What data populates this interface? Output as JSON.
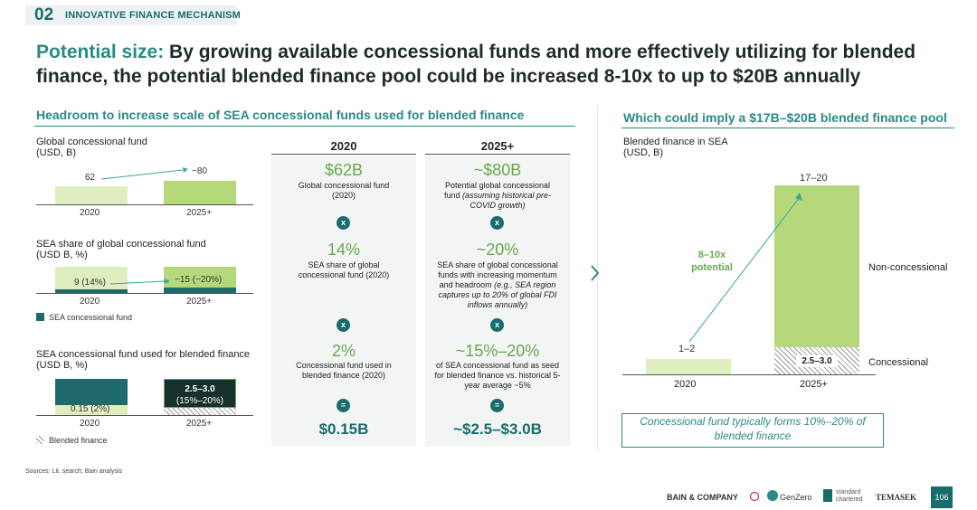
{
  "section": {
    "number": "02",
    "label": "INNOVATIVE FINANCE MECHANISM"
  },
  "headline": {
    "lead": "Potential size:",
    "text": "By growing available concessional funds and more effectively utilizing for blended finance, the potential blended finance pool could be increased 8-10x to up to $20B annually"
  },
  "left": {
    "subtitle": "Headroom to increase scale of SEA concessional funds used for blended finance",
    "chart1": {
      "title": "Global concessional fund",
      "units": "(USD, B)",
      "v2020": "62",
      "v2025": "~80",
      "x2020": "2020",
      "x2025": "2025+"
    },
    "chart2": {
      "title": "SEA share of global concessional fund",
      "units": "(USD B, %)",
      "v2020": "9 (14%)",
      "v2025": "~15 (~20%)",
      "x2020": "2020",
      "x2025": "2025+",
      "legend": "SEA concessional fund"
    },
    "chart3": {
      "title": "SEA concessional fund used for blended finance",
      "units": "(USD B, %)",
      "v2020": "0.15 (2%)",
      "v2025_line1": "2.5–3.0",
      "v2025_line2": "(15%–20%)",
      "x2020": "2020",
      "x2025": "2025+",
      "legend": "Blended finance"
    }
  },
  "table": {
    "col2020": {
      "header": "2020",
      "r1_big": "$62B",
      "r1_desc": "Global concessional fund (2020)",
      "op1": "x",
      "r2_big": "14%",
      "r2_desc": "SEA share of global concessional fund (2020)",
      "op2": "x",
      "r3_big": "2%",
      "r3_desc": "Concessional fund used in blended finance (2020)",
      "op3": "=",
      "result": "$0.15B"
    },
    "col2025": {
      "header": "2025+",
      "r1_big": "~$80B",
      "r1_desc_a": "Potential global concessional fund ",
      "r1_desc_b": "(assuming historical pre-COVID growth)",
      "op1": "x",
      "r2_big": "~20%",
      "r2_desc_a": "SEA share of global concessional funds with increasing momentum and headroom ",
      "r2_desc_b": "(e.g., SEA region captures up to 20% of global FDI inflows annually)",
      "op2": "x",
      "r3_big": "~15%–20%",
      "r3_desc": "of SEA concessional fund as seed for blended finance vs. historical 5-year average ~5%",
      "op3": "=",
      "result": "~$2.5–$3.0B"
    }
  },
  "right": {
    "subtitle": "Which could imply a $17B–$20B blended finance pool",
    "title": "Blended finance in SEA",
    "units": "(USD, B)",
    "v2020": "1–2",
    "v2025": "17–20",
    "conc_value": "2.5–3.0",
    "growth": "8–10x potential",
    "legend_nonconc": "Non-concessional",
    "legend_conc": "Concessional",
    "x2020": "2020",
    "x2025": "2025+",
    "note": "Concessional fund typically forms 10%–20% of blended finance"
  },
  "footer": {
    "sources": "Sources: Lit. search; Bain analysis",
    "logos": [
      "BAIN & COMPANY",
      "GenZero",
      "standard chartered",
      "TEMASEK"
    ],
    "page": "106"
  },
  "chart_data": [
    {
      "type": "bar",
      "title": "Global concessional fund",
      "ylabel": "USD, B",
      "categories": [
        "2020",
        "2025+"
      ],
      "values": [
        62,
        80
      ]
    },
    {
      "type": "bar",
      "title": "SEA share of global concessional fund",
      "ylabel": "USD B, %",
      "categories": [
        "2020",
        "2025+"
      ],
      "values": [
        9,
        15
      ],
      "percent": [
        14,
        20
      ]
    },
    {
      "type": "bar",
      "title": "SEA concessional fund used for blended finance",
      "ylabel": "USD B, %",
      "categories": [
        "2020",
        "2025+"
      ],
      "values": [
        0.15,
        2.75
      ]
    },
    {
      "type": "bar",
      "title": "Blended finance in SEA",
      "ylabel": "USD, B",
      "categories": [
        "2020",
        "2025+"
      ],
      "series": [
        {
          "name": "Concessional",
          "values": [
            0,
            2.75
          ]
        },
        {
          "name": "Non-concessional",
          "values": [
            1.5,
            15.75
          ]
        }
      ]
    }
  ],
  "colors": {
    "teal": "#1a6b6b",
    "green": "#6aa84f",
    "light_bar": "#dfeebf",
    "mid_bar": "#b5d97a"
  }
}
